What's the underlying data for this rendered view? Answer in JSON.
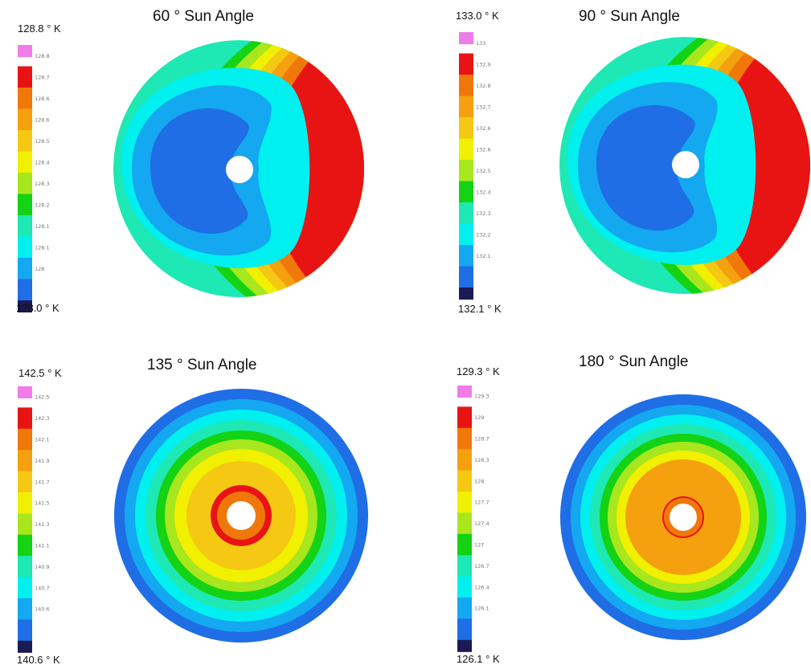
{
  "palette": [
    "#1c1a55",
    "#1f6ee6",
    "#14a8f0",
    "#00f0f0",
    "#1ee8b4",
    "#14d214",
    "#a8e61e",
    "#f0f000",
    "#f5c814",
    "#f5a00f",
    "#f0780a",
    "#e81414",
    "#f07ce8"
  ],
  "panels": [
    {
      "title": "60 ° Sun Angle",
      "max_label": "128.8 ° K",
      "min_label": "128.0 ° K",
      "ticks": [
        "128.8",
        "128.7",
        "128.6",
        "128.6",
        "128.5",
        "128.4",
        "128.3",
        "128.2",
        "128.1",
        "128.1",
        "128"
      ],
      "pattern": "side"
    },
    {
      "title": "90 ° Sun Angle",
      "max_label": "133.0 ° K",
      "min_label": "132.1 ° K",
      "ticks": [
        "133",
        "132.9",
        "132.8",
        "132.7",
        "132.6",
        "132.6",
        "132.5",
        "132.4",
        "132.3",
        "132.2",
        "132.1"
      ],
      "pattern": "side"
    },
    {
      "title": "135 ° Sun Angle",
      "max_label": "142.5 ° K",
      "min_label": "140.6 ° K",
      "ticks": [
        "142.5",
        "142.3",
        "142.1",
        "141.9",
        "141.7",
        "141.5",
        "141.3",
        "141.1",
        "140.9",
        "140.7",
        "140.6"
      ],
      "pattern": "rings"
    },
    {
      "title": "180 ° Sun Angle",
      "max_label": "129.3 ° K",
      "min_label": "126.1 ° K",
      "ticks": [
        "129.3",
        "129",
        "128.7",
        "128.3",
        "128",
        "127.7",
        "127.4",
        "127",
        "126.7",
        "126.4",
        "126.1"
      ],
      "pattern": "rings"
    }
  ]
}
